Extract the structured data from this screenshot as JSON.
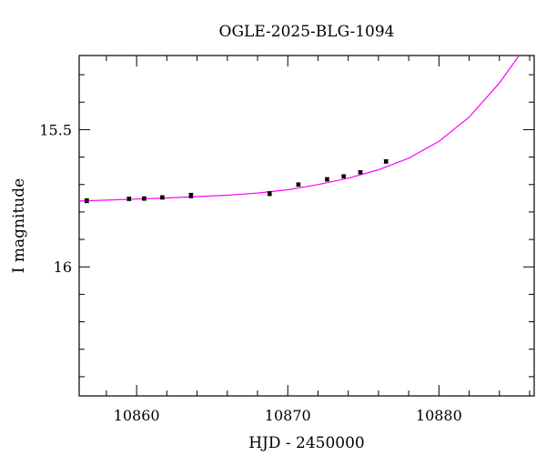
{
  "chart_data": {
    "type": "scatter",
    "title": "OGLE-2025-BLG-1094",
    "xlabel": "HJD - 2450000",
    "ylabel": "I magnitude",
    "xlim": [
      10856.2,
      10886.3
    ],
    "ylim": [
      16.47,
      15.23
    ],
    "y_inverted": true,
    "xticks": [
      10860,
      10870,
      10880
    ],
    "yticks": [
      15.5,
      16
    ],
    "xticks_minor_step": 2,
    "yticks_minor_step": 0.1,
    "grid": false,
    "points": {
      "x": [
        10856.7,
        10859.5,
        10860.5,
        10861.7,
        10863.6,
        10868.8,
        10870.7,
        10872.6,
        10873.7,
        10874.8,
        10876.5
      ],
      "y": [
        15.759,
        15.752,
        15.751,
        15.747,
        15.74,
        15.733,
        15.7,
        15.681,
        15.67,
        15.655,
        15.616
      ],
      "yerr": [
        0.007,
        0.006,
        0.006,
        0.006,
        0.008,
        0.007,
        0.006,
        0.006,
        0.005,
        0.005,
        0.006
      ],
      "color": "#000000"
    },
    "model_curve": {
      "color": "#ff00ff",
      "x": [
        10856.2,
        10858,
        10860,
        10862,
        10864,
        10866,
        10868,
        10870,
        10872,
        10874,
        10876,
        10878,
        10880,
        10882,
        10884,
        10885.3
      ],
      "y": [
        15.76,
        15.757,
        15.753,
        15.749,
        15.744,
        15.739,
        15.731,
        15.719,
        15.7,
        15.677,
        15.646,
        15.604,
        15.543,
        15.454,
        15.33,
        15.23
      ]
    }
  }
}
